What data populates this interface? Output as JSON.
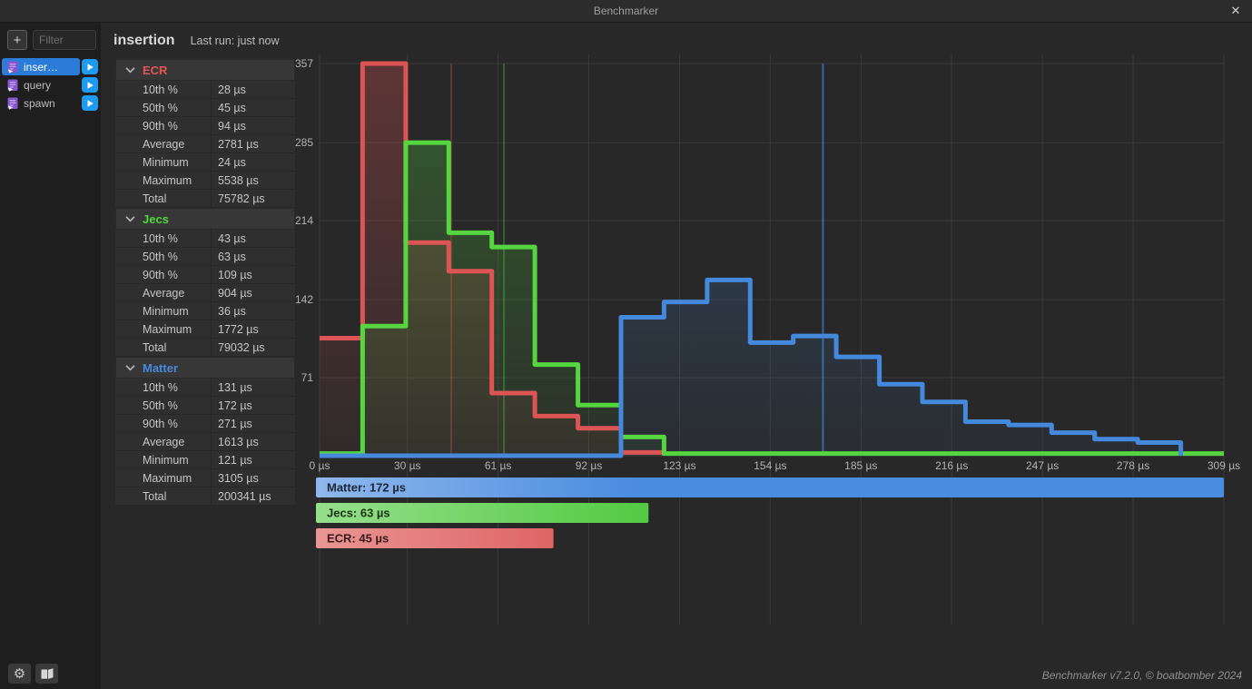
{
  "titlebar": {
    "title": "Benchmarker",
    "close_glyph": "✕"
  },
  "sidebar": {
    "add_label": "+",
    "filter_placeholder": "Filter",
    "items": [
      {
        "label": "inser…",
        "selected": true
      },
      {
        "label": "query",
        "selected": false
      },
      {
        "label": "spawn",
        "selected": false
      }
    ]
  },
  "header": {
    "title": "insertion",
    "last_run": "Last run: just now"
  },
  "stats": {
    "sections": [
      {
        "name": "ECR",
        "color": "#e25555",
        "rows": [
          [
            "10th %",
            "28 µs"
          ],
          [
            "50th %",
            "45 µs"
          ],
          [
            "90th %",
            "94 µs"
          ],
          [
            "Average",
            "2781 µs"
          ],
          [
            "Minimum",
            "24 µs"
          ],
          [
            "Maximum",
            "5538 µs"
          ],
          [
            "Total",
            "75782 µs"
          ]
        ]
      },
      {
        "name": "Jecs",
        "color": "#4fd83c",
        "rows": [
          [
            "10th %",
            "43 µs"
          ],
          [
            "50th %",
            "63 µs"
          ],
          [
            "90th %",
            "109 µs"
          ],
          [
            "Average",
            "904 µs"
          ],
          [
            "Minimum",
            "36 µs"
          ],
          [
            "Maximum",
            "1772 µs"
          ],
          [
            "Total",
            "79032 µs"
          ]
        ]
      },
      {
        "name": "Matter",
        "color": "#4489dc",
        "rows": [
          [
            "10th %",
            "131 µs"
          ],
          [
            "50th %",
            "172 µs"
          ],
          [
            "90th %",
            "271 µs"
          ],
          [
            "Average",
            "1613 µs"
          ],
          [
            "Minimum",
            "121 µs"
          ],
          [
            "Maximum",
            "3105 µs"
          ],
          [
            "Total",
            "200341 µs"
          ]
        ]
      }
    ]
  },
  "chart_data": {
    "type": "step-histogram",
    "xlim": [
      0,
      309
    ],
    "ylim": [
      0,
      357
    ],
    "bin_width_us": 14.714,
    "x_ticks": [
      0,
      30,
      61,
      92,
      123,
      154,
      185,
      216,
      247,
      278,
      309
    ],
    "x_tick_labels": [
      "0 µs",
      "30 µs",
      "61 µs",
      "92 µs",
      "123 µs",
      "154 µs",
      "185 µs",
      "216 µs",
      "247 µs",
      "278 µs",
      "309 µs"
    ],
    "y_ticks": [
      0,
      71,
      142,
      214,
      285,
      357
    ],
    "grid": true,
    "series": [
      {
        "name": "ECR",
        "color": "#dd5454",
        "median_us": 45,
        "median_opacity": 0.32,
        "values": [
          107,
          357,
          194,
          168,
          57,
          36,
          25,
          3,
          0,
          0,
          0,
          0,
          0,
          0,
          0,
          0,
          0,
          0,
          0,
          0,
          0
        ]
      },
      {
        "name": "Jecs",
        "color": "#55d640",
        "median_us": 63,
        "median_opacity": 0.32,
        "values": [
          2,
          118,
          285,
          203,
          190,
          83,
          46,
          17,
          2,
          2,
          2,
          2,
          2,
          2,
          2,
          2,
          2,
          2,
          2,
          2,
          2
        ]
      },
      {
        "name": "Matter",
        "color": "#4489dc",
        "median_us": 172,
        "median_opacity": 0.65,
        "values": [
          0,
          0,
          0,
          0,
          0,
          0,
          0,
          126,
          140,
          160,
          103,
          109,
          90,
          65,
          49,
          31,
          28,
          21,
          15,
          12,
          0
        ]
      }
    ],
    "legend_bars": [
      {
        "label": "Matter: 172 µs",
        "value_us": 172,
        "color": "#4a8ce0",
        "text_color": "#1c2735"
      },
      {
        "label": "Jecs: 63 µs",
        "value_us": 63,
        "color": "#55cb45",
        "text_color": "#1b3214"
      },
      {
        "label": "ECR: 45 µs",
        "value_us": 45,
        "color": "#dc5454",
        "text_color": "#381b19"
      }
    ]
  },
  "footer": {
    "version_text": "Benchmarker v7.2.0, © boatbomber 2024"
  },
  "colors": {
    "selection_blue": "#2b7cd9",
    "play_blue": "#1e9af0",
    "ecr_red": "#dd5454",
    "jecs_green": "#55d640",
    "matter_blue": "#4489dc",
    "grid": "#3a3a3a"
  }
}
